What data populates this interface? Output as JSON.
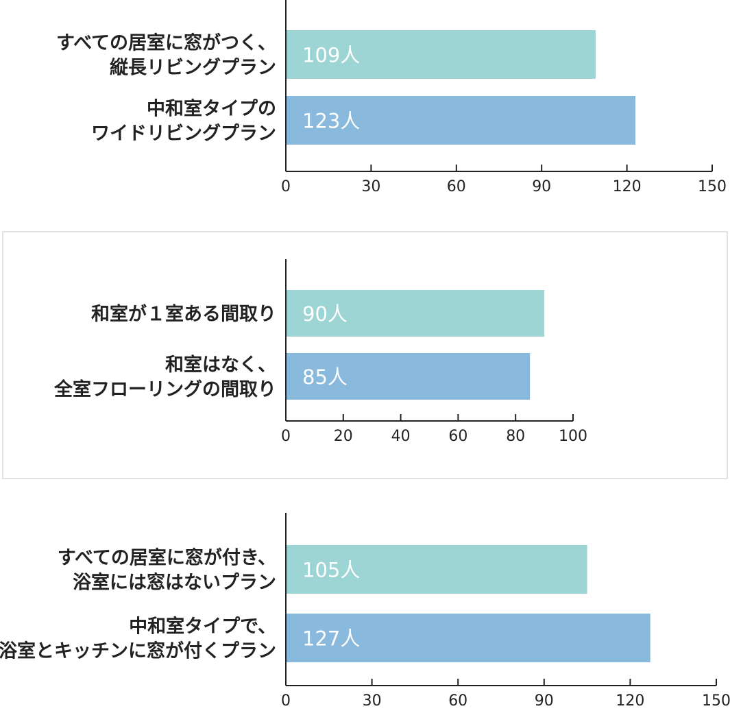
{
  "chart_data": [
    {
      "type": "bar",
      "orientation": "horizontal",
      "categories": [
        "すべての居室に窓がつく、\n縦長リビングプラン",
        "中和室タイプの\nワイドリビングプラン"
      ],
      "values": [
        109,
        123
      ],
      "value_labels": [
        "109人",
        "123人"
      ],
      "bar_colors": [
        "#9dd5d4",
        "#89b9dd"
      ],
      "xlim": [
        0,
        150
      ],
      "xticks": [
        "0",
        "30",
        "60",
        "90",
        "120",
        "150"
      ],
      "grid": false,
      "boxed": false
    },
    {
      "type": "bar",
      "orientation": "horizontal",
      "categories": [
        "和室が１室ある間取り",
        "和室はなく、\n全室フローリングの間取り"
      ],
      "values": [
        90,
        85
      ],
      "value_labels": [
        "90人",
        "85人"
      ],
      "bar_colors": [
        "#9dd5d4",
        "#89b9dd"
      ],
      "xlim": [
        0,
        100
      ],
      "xticks": [
        "0",
        "20",
        "40",
        "60",
        "80",
        "100"
      ],
      "grid": false,
      "boxed": true
    },
    {
      "type": "bar",
      "orientation": "horizontal",
      "categories": [
        "すべての居室に窓が付き、\n浴室には窓はないプラン",
        "中和室タイプで、\n浴室とキッチンに窓が付くプラン"
      ],
      "values": [
        105,
        127
      ],
      "value_labels": [
        "105人",
        "127人"
      ],
      "bar_colors": [
        "#9dd5d4",
        "#89b9dd"
      ],
      "xlim": [
        0,
        150
      ],
      "xticks": [
        "0",
        "30",
        "60",
        "90",
        "120",
        "150"
      ],
      "grid": false,
      "boxed": false
    }
  ],
  "colors": {
    "bar_teal": "#9dd5d4",
    "bar_blue": "#89b9dd",
    "axis": "#222222",
    "panel_border": "#d9d9d9"
  }
}
